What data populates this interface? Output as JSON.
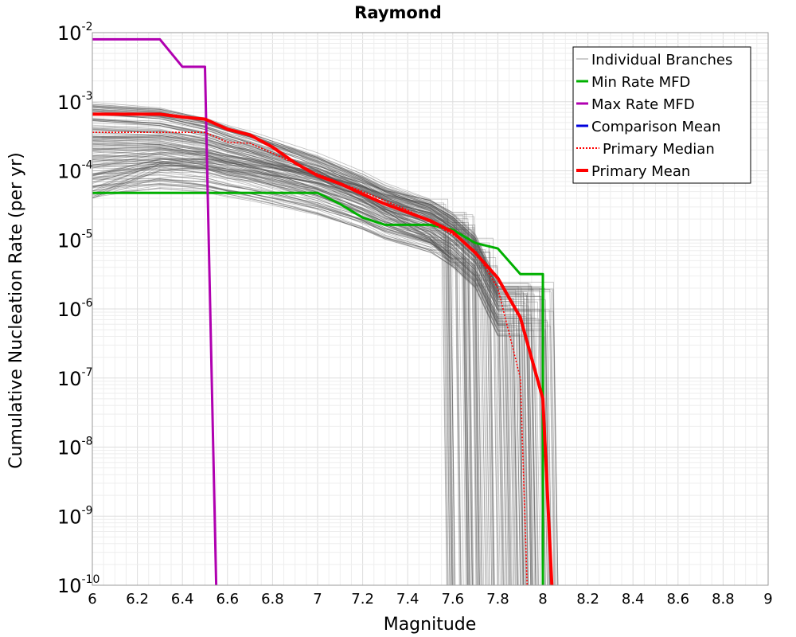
{
  "chart_data": {
    "type": "line",
    "title": "Raymond",
    "xlabel": "Magnitude",
    "ylabel": "Cumulative Nucleation Rate (per yr)",
    "xlim": [
      6,
      9
    ],
    "ylim": [
      1e-10,
      0.01
    ],
    "yscale": "log",
    "grid": true,
    "legend_position": "top-right",
    "x_ticks": [
      "6",
      "6.2",
      "6.4",
      "6.6",
      "6.8",
      "7",
      "7.2",
      "7.4",
      "7.6",
      "7.8",
      "8",
      "8.2",
      "8.4",
      "8.6",
      "8.8",
      "9"
    ],
    "y_ticks": [
      {
        "base": "10",
        "exp": "-2",
        "value": 0.01
      },
      {
        "base": "10",
        "exp": "-3",
        "value": 0.001
      },
      {
        "base": "10",
        "exp": "-4",
        "value": 0.0001
      },
      {
        "base": "10",
        "exp": "-5",
        "value": 1e-05
      },
      {
        "base": "10",
        "exp": "-6",
        "value": 1e-06
      },
      {
        "base": "10",
        "exp": "-7",
        "value": 1e-07
      },
      {
        "base": "10",
        "exp": "-8",
        "value": 1e-08
      },
      {
        "base": "10",
        "exp": "-9",
        "value": 1e-09
      },
      {
        "base": "10",
        "exp": "-10",
        "value": 1e-10
      }
    ],
    "series": [
      {
        "name": "Individual Branches",
        "color": "#555555",
        "style": "thin",
        "x": [
          6.0,
          6.3,
          6.5,
          6.6,
          6.7,
          6.8,
          7.0,
          7.2,
          7.3,
          7.5,
          7.6,
          7.7,
          7.8,
          7.9
        ],
        "y": [
          0.0002,
          0.0002,
          0.00016,
          0.00013,
          0.00011,
          9e-05,
          6e-05,
          3.5e-05,
          2.5e-05,
          1.6e-05,
          1e-05,
          5e-06,
          1e-06,
          1e-10
        ]
      },
      {
        "name": "Min Rate MFD",
        "color": "#00b000",
        "style": "solid",
        "x": [
          6.0,
          7.0,
          7.1,
          7.2,
          7.3,
          7.5,
          7.6,
          7.7,
          7.8,
          7.9,
          8.0,
          8.0
        ],
        "y": [
          4.8e-05,
          4.8e-05,
          3.3e-05,
          2.1e-05,
          1.65e-05,
          1.65e-05,
          1.4e-05,
          9e-06,
          7.5e-06,
          3.2e-06,
          3.2e-06,
          1e-10
        ]
      },
      {
        "name": "Max Rate MFD",
        "color": "#b000b0",
        "style": "solid",
        "x": [
          6.0,
          6.3,
          6.4,
          6.5,
          6.55
        ],
        "y": [
          0.008,
          0.008,
          0.0032,
          0.0032,
          1e-10
        ]
      },
      {
        "name": "Comparison Mean",
        "color": "#0000dd",
        "style": "solid",
        "x": [],
        "y": []
      },
      {
        "name": "Primary Median",
        "color": "#ff0000",
        "style": "dotted",
        "x": [
          6.0,
          6.5,
          6.6,
          6.7,
          6.8,
          7.0,
          7.2,
          7.4,
          7.6,
          7.7,
          7.8,
          7.9,
          7.93
        ],
        "y": [
          0.00036,
          0.00036,
          0.00026,
          0.00025,
          0.00018,
          9e-05,
          5e-05,
          2.7e-05,
          1.2e-05,
          7e-06,
          2e-06,
          1e-07,
          1e-10
        ]
      },
      {
        "name": "Primary Mean",
        "color": "#ff0000",
        "style": "thick",
        "x": [
          6.0,
          6.3,
          6.4,
          6.5,
          6.6,
          6.7,
          6.8,
          6.9,
          7.0,
          7.1,
          7.2,
          7.3,
          7.4,
          7.5,
          7.6,
          7.7,
          7.8,
          7.9,
          8.0,
          8.04
        ],
        "y": [
          0.00066,
          0.00066,
          0.0006,
          0.00056,
          0.0004,
          0.00033,
          0.00022,
          0.00013,
          8.5e-05,
          6.5e-05,
          4.6e-05,
          3.3e-05,
          2.5e-05,
          1.9e-05,
          1.3e-05,
          6.5e-06,
          2.8e-06,
          7.5e-07,
          5e-08,
          1e-10
        ]
      }
    ]
  }
}
